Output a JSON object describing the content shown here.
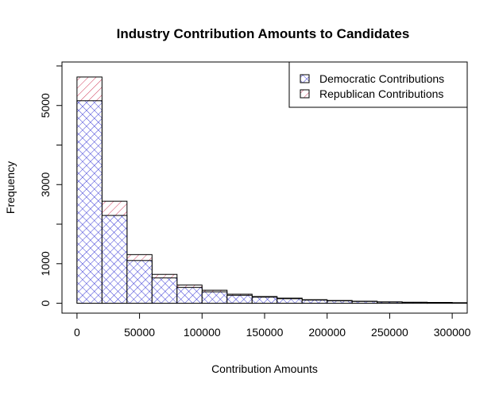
{
  "chart_data": {
    "type": "bar",
    "title": "Industry Contribution Amounts to Candidates",
    "xlabel": "Contribution Amounts",
    "ylabel": "Frequency",
    "xlim": [
      -12000,
      312000
    ],
    "ylim": [
      -250,
      6100
    ],
    "x_ticks": [
      0,
      50000,
      100000,
      150000,
      200000,
      250000,
      300000
    ],
    "x_tick_labels": [
      "0",
      "50000",
      "100000",
      "150000",
      "200000",
      "250000",
      "300000"
    ],
    "y_ticks": [
      0,
      1000,
      3000,
      5000
    ],
    "y_tick_labels": [
      "0",
      "1000",
      "3000",
      "5000"
    ],
    "bin_edges": [
      0,
      20000,
      40000,
      60000,
      80000,
      100000,
      120000,
      140000,
      160000,
      180000,
      200000,
      220000,
      240000,
      260000,
      280000,
      300000,
      320000
    ],
    "grid": false,
    "legend_position": "top-right",
    "series": [
      {
        "name": "Democratic Contributions",
        "color": "#3b3bd6",
        "hatch": "crosshatch",
        "values": [
          5120,
          2220,
          1080,
          640,
          400,
          290,
          200,
          155,
          115,
          80,
          60,
          45,
          30,
          22,
          18,
          12
        ]
      },
      {
        "name": "Republican Contributions",
        "color": "#d03a5a",
        "hatch": "diagonal",
        "values": [
          5720,
          2580,
          1230,
          730,
          460,
          330,
          230,
          170,
          130,
          90,
          70,
          52,
          36,
          26,
          20,
          14
        ]
      }
    ]
  }
}
